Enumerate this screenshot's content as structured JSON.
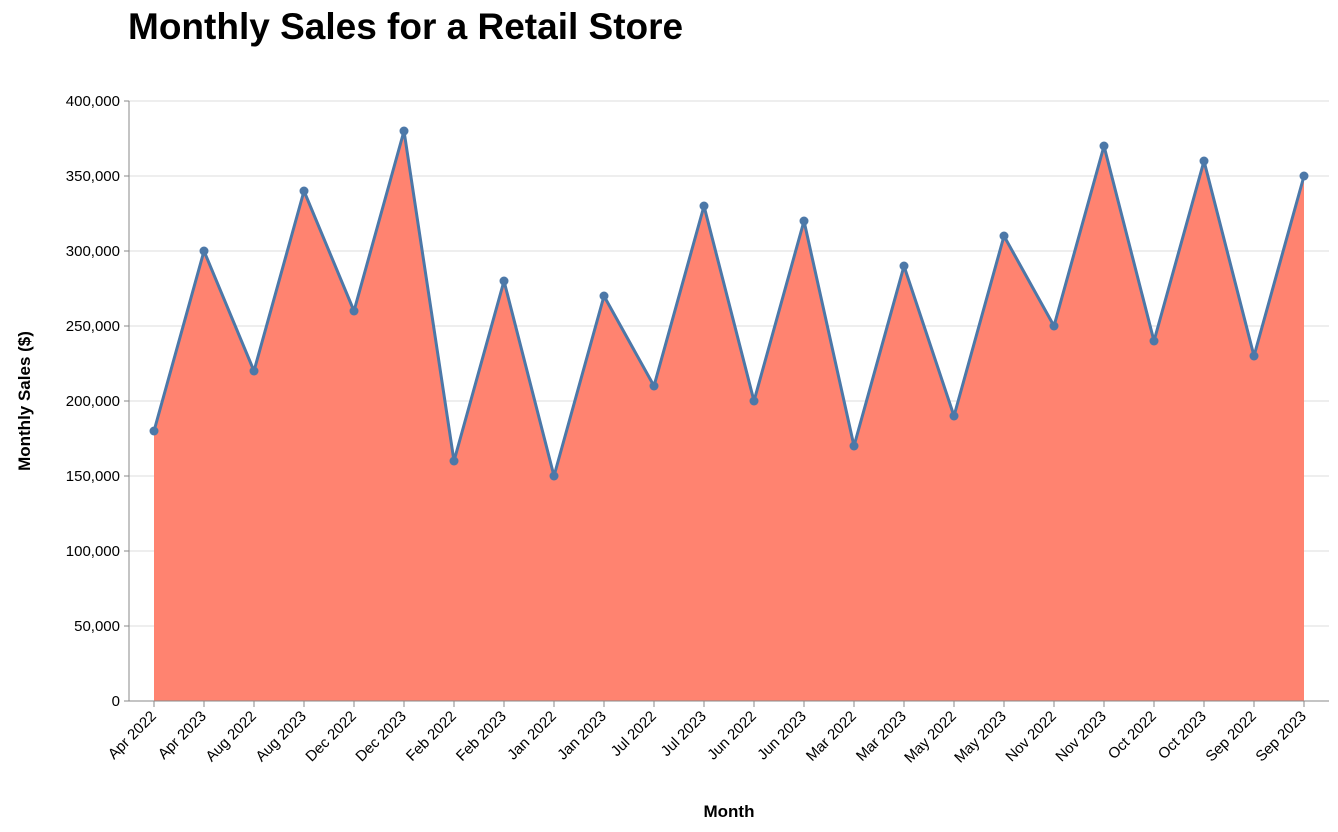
{
  "chart_data": {
    "type": "area",
    "title": "Monthly Sales for a Retail Store",
    "xlabel": "Month",
    "ylabel": "Monthly Sales ($)",
    "ylim": [
      0,
      400000
    ],
    "yticks": [
      "0",
      "50,000",
      "100,000",
      "150,000",
      "200,000",
      "250,000",
      "300,000",
      "350,000",
      "400,000"
    ],
    "ytick_values": [
      0,
      50000,
      100000,
      150000,
      200000,
      250000,
      300000,
      350000,
      400000
    ],
    "grid": true,
    "legend": "none",
    "categories": [
      "Apr 2022",
      "Apr 2023",
      "Aug 2022",
      "Aug 2023",
      "Dec 2022",
      "Dec 2023",
      "Feb 2022",
      "Feb 2023",
      "Jan 2022",
      "Jan 2023",
      "Jul 2022",
      "Jul 2023",
      "Jun 2022",
      "Jun 2023",
      "Mar 2022",
      "Mar 2023",
      "May 2022",
      "May 2023",
      "Nov 2022",
      "Nov 2023",
      "Oct 2022",
      "Oct 2023",
      "Sep 2022",
      "Sep 2023"
    ],
    "values": [
      180000,
      300000,
      220000,
      340000,
      260000,
      380000,
      160000,
      280000,
      150000,
      270000,
      210000,
      330000,
      200000,
      320000,
      170000,
      290000,
      190000,
      310000,
      250000,
      370000,
      240000,
      360000,
      230000,
      350000
    ],
    "colors": {
      "area": "#ff8370",
      "line": "#4c78a8",
      "point": "#4c78a8",
      "grid": "#dddddd",
      "axis": "#888888"
    }
  }
}
